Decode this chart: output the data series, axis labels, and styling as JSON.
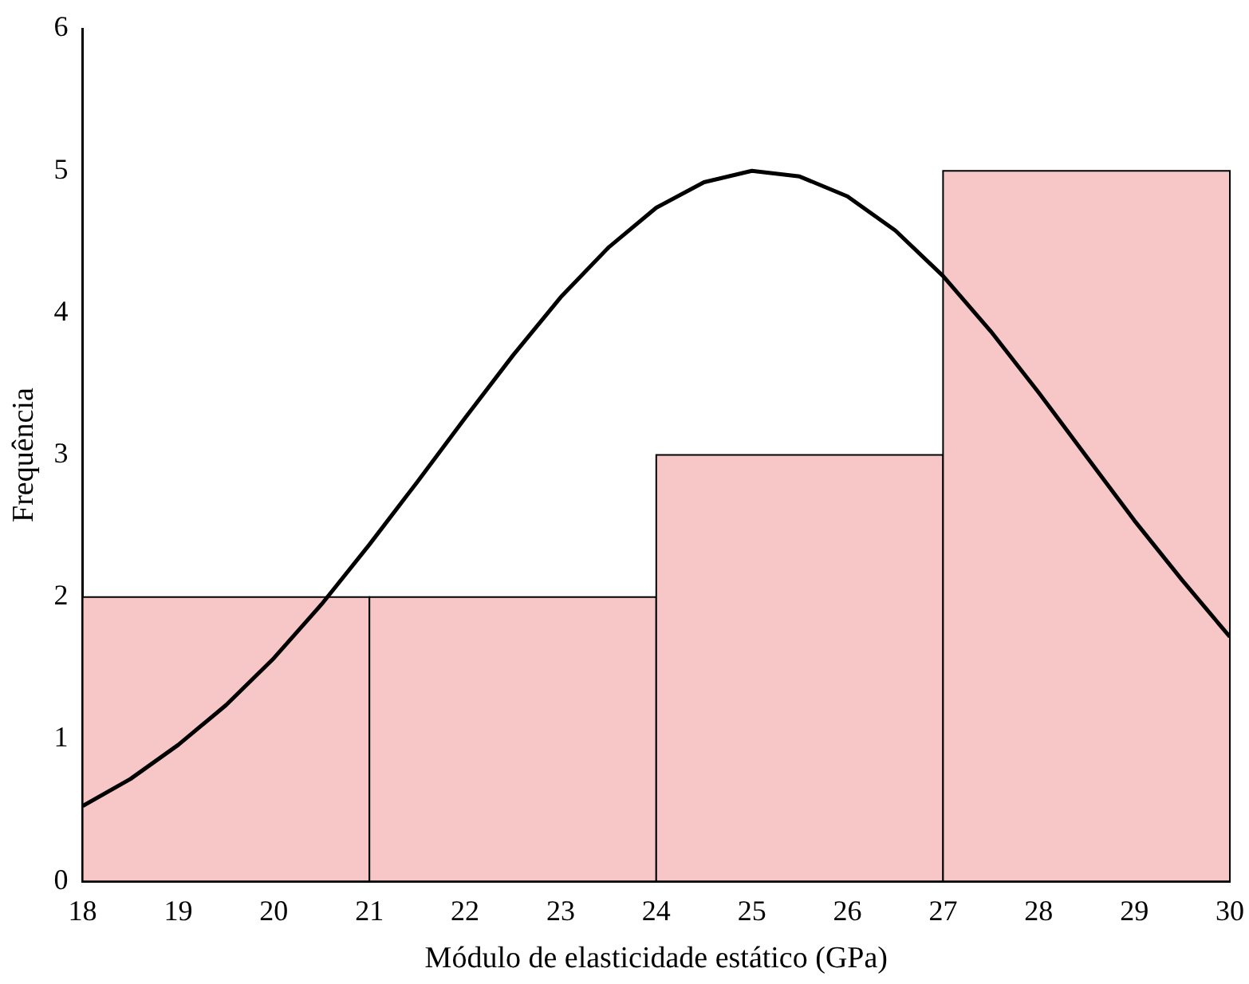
{
  "chart_data": {
    "type": "histogram",
    "xlabel": "Módulo de elasticidade estático (GPa)",
    "ylabel": "Frequência",
    "bins": [
      18,
      21,
      24,
      27,
      30
    ],
    "values": [
      2,
      2,
      3,
      5
    ],
    "color": "#f7c6c6",
    "xlim": [
      18,
      30
    ],
    "xticks": [
      18,
      19,
      20,
      21,
      22,
      23,
      24,
      25,
      26,
      27,
      28,
      29,
      30
    ],
    "ylim": [
      0,
      6
    ],
    "yticks": [
      0,
      1,
      2,
      3,
      4,
      5,
      6
    ],
    "grid": false,
    "legend": false,
    "series": [
      {
        "type": "line",
        "color": "#000000",
        "marker": "none",
        "x": [
          18,
          18.5,
          19,
          19.5,
          20,
          20.5,
          21,
          21.5,
          22,
          22.5,
          23,
          23.5,
          24,
          24.5,
          25,
          25.5,
          26,
          26.5,
          27,
          27.5,
          28,
          28.5,
          29,
          29.5,
          30
        ],
        "values": [
          0.53,
          0.72,
          0.96,
          1.24,
          1.57,
          1.95,
          2.37,
          2.81,
          3.26,
          3.7,
          4.11,
          4.46,
          4.74,
          4.92,
          5.0,
          4.96,
          4.82,
          4.58,
          4.26,
          3.87,
          3.44,
          2.99,
          2.54,
          2.12,
          1.72
        ]
      }
    ]
  }
}
